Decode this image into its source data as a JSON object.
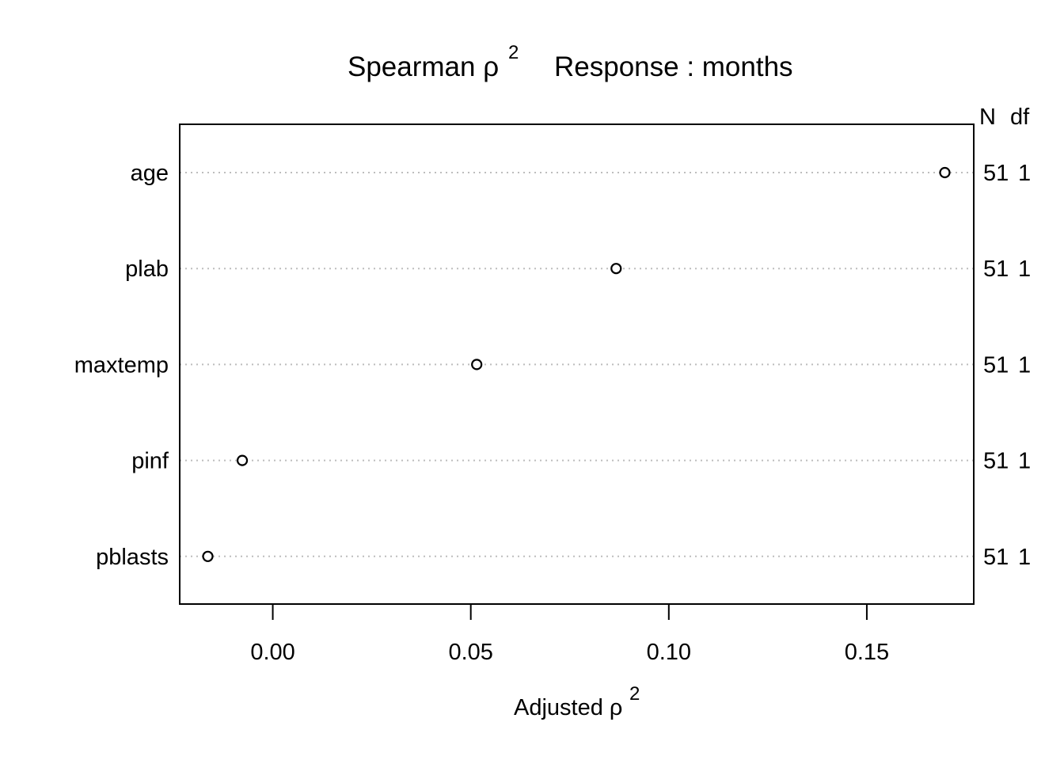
{
  "chart_data": {
    "type": "scatter",
    "title": {
      "part1": "Spearman ",
      "rho": "ρ",
      "exponent": "2",
      "part2": "Response : months"
    },
    "xlabel": {
      "text": "Adjusted ",
      "rho": "ρ",
      "exponent": "2"
    },
    "ylabel": "",
    "xlim": [
      -0.0235,
      0.177
    ],
    "xticks": [
      {
        "value": 0.0,
        "label": "0.00"
      },
      {
        "value": 0.05,
        "label": "0.05"
      },
      {
        "value": 0.1,
        "label": "0.10"
      },
      {
        "value": 0.15,
        "label": "0.15"
      }
    ],
    "categories": [
      "age",
      "plab",
      "maxtemp",
      "pinf",
      "pblasts"
    ],
    "values": [
      0.1697,
      0.0867,
      0.0515,
      -0.0077,
      -0.0164
    ],
    "right_columns": {
      "header_n": "N",
      "header_df": "df",
      "n": [
        "51",
        "51",
        "51",
        "51",
        "51"
      ],
      "df": [
        "1",
        "1",
        "1",
        "1",
        "1"
      ]
    },
    "grid": "dotted horizontal guide lines",
    "legend": "none"
  }
}
